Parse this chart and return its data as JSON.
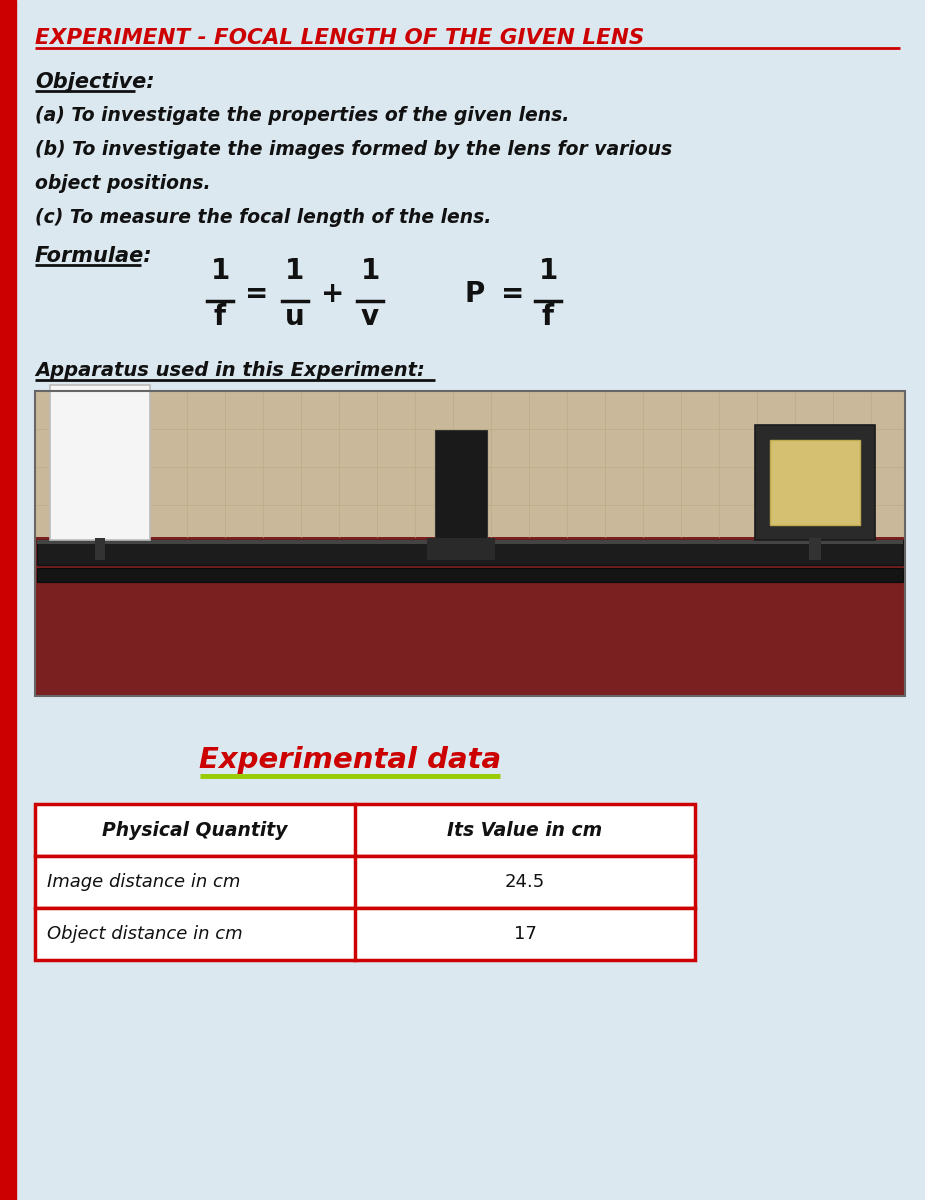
{
  "title": "EXPERIMENT - FOCAL LENGTH OF THE GIVEN LENS",
  "title_color": "#CC0000",
  "background_color": "#dce8f0",
  "left_bar_color": "#CC0000",
  "objective_label": "Objective:",
  "objective_items": [
    "(a) To investigate the properties of the given lens.",
    "(b) To investigate the images formed by the lens for various\nobject positions.",
    "(c) To measure the focal length of the lens."
  ],
  "formulae_label": "Formulae:",
  "apparatus_label": "Apparatus used in this Experiment:",
  "exp_data_label": "Experimental data",
  "exp_data_underline_color": "#99cc00",
  "table_border_color": "#CC0000",
  "table_header_row": [
    "Physical Quantity",
    "Its Value in cm"
  ],
  "table_data_rows": [
    [
      "Image distance in cm",
      "24.5"
    ],
    [
      "Object distance in cm",
      "17"
    ]
  ],
  "text_color": "#111111"
}
